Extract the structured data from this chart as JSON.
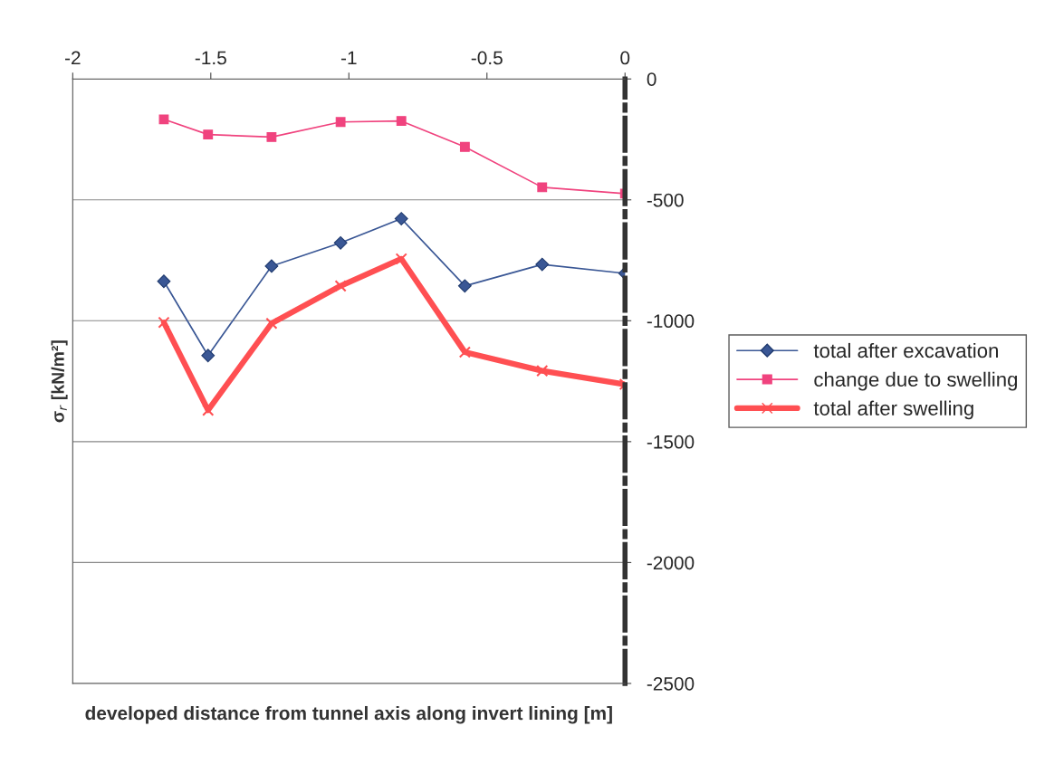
{
  "chart_data": {
    "type": "line",
    "xlabel": "developed distance from tunnel axis along invert lining [m]",
    "ylabel": "σ$_{r}$ [kN/m²]",
    "x": [
      -1.67,
      -1.51,
      -1.28,
      -1.03,
      -0.81,
      -0.58,
      -0.3,
      0
    ],
    "series": [
      {
        "name": "total after excavation",
        "color": "#3a5795",
        "marker": "diamond",
        "values": [
          -837,
          -1144,
          -774,
          -678,
          -578,
          -856,
          -767,
          -804
        ]
      },
      {
        "name": "change due to swelling",
        "color": "#f0437e",
        "marker": "square",
        "values": [
          -167,
          -230,
          -240,
          -178,
          -174,
          -281,
          -448,
          -474
        ]
      },
      {
        "name": "total after swelling",
        "color": "#ff4f52",
        "marker": "cross",
        "values": [
          -1007,
          -1370,
          -1011,
          -856,
          -744,
          -1130,
          -1207,
          -1263
        ]
      }
    ],
    "xlim": [
      -2,
      0
    ],
    "xticks": [
      -2,
      -1.5,
      -1,
      -0.5,
      0
    ],
    "ylim": [
      -2500,
      0
    ],
    "yticks": [
      -2500,
      -2000,
      -1500,
      -1000,
      -500,
      0
    ],
    "grid": "y",
    "legend": "right",
    "line_style": "solid"
  }
}
